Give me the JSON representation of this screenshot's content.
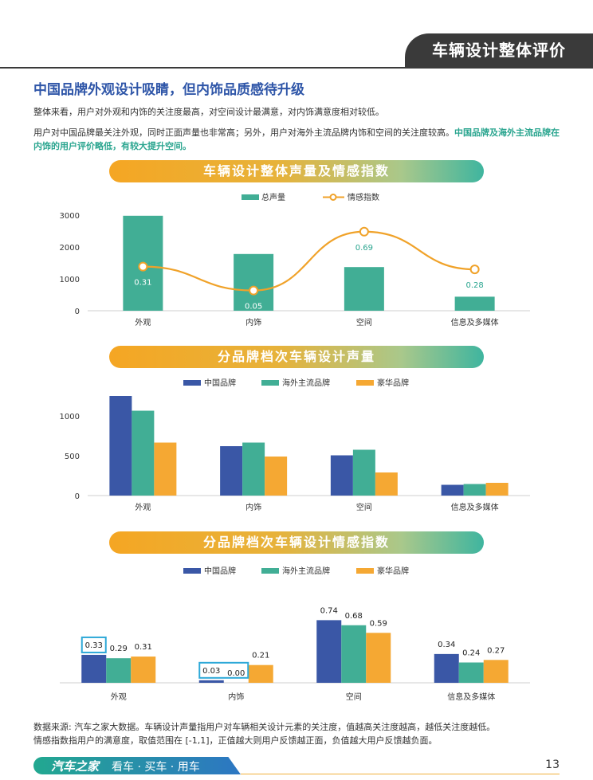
{
  "header": {
    "banner": "车辆设计整体评价"
  },
  "section": {
    "title": "中国品牌外观设计吸睛，但内饰品质感待升级",
    "para1": "整体来看，用户对外观和内饰的关注度最高，对空间设计最满意，对内饰满意度相对较低。",
    "para2_plain": "用户对中国品牌最关注外观，同时正面声量也非常高；另外，用户对海外主流品牌内饰和空间的关注度较高。",
    "para2_highlight": "中国品牌及海外主流品牌在内饰的用户评价略低，有较大提升空间。"
  },
  "colors": {
    "teal": "#41ae95",
    "orange": "#f5a833",
    "navy": "#3a57a6",
    "line": "#f0a229",
    "highlight_box": "#2ea9d8",
    "label_teal": "#2aa58f"
  },
  "chart_data": [
    {
      "type": "bar",
      "title": "车辆设计整体声量及情感指数",
      "categories": [
        "外观",
        "内饰",
        "空间",
        "信息及多媒体"
      ],
      "yticks": [
        "0",
        "1000",
        "2000",
        "3000"
      ],
      "ylim": [
        0,
        3000
      ],
      "legend_position": "top",
      "series": [
        {
          "name": "总声量",
          "kind": "bar",
          "values": [
            2980,
            1780,
            1370,
            440
          ]
        },
        {
          "name": "情感指数",
          "kind": "line",
          "values": [
            0.31,
            0.05,
            0.69,
            0.28
          ],
          "labels": [
            "0.31",
            "0.05",
            "0.69",
            "0.28"
          ]
        }
      ]
    },
    {
      "type": "bar",
      "title": "分品牌档次车辆设计声量",
      "categories": [
        "外观",
        "内饰",
        "空间",
        "信息及多媒体"
      ],
      "yticks": [
        "0",
        "500",
        "1000"
      ],
      "ylim": [
        0,
        1250
      ],
      "legend_position": "top",
      "series": [
        {
          "name": "中国品牌",
          "values": [
            1250,
            620,
            505,
            135
          ]
        },
        {
          "name": "海外主流品牌",
          "values": [
            1065,
            665,
            575,
            145
          ]
        },
        {
          "name": "豪华品牌",
          "values": [
            665,
            490,
            290,
            160
          ]
        }
      ]
    },
    {
      "type": "bar",
      "title": "分品牌档次车辆设计情感指数",
      "categories": [
        "外观",
        "内饰",
        "空间",
        "信息及多媒体"
      ],
      "ylim": [
        0,
        0.8
      ],
      "legend_position": "top",
      "series": [
        {
          "name": "中国品牌",
          "values": [
            0.33,
            0.03,
            0.74,
            0.34
          ],
          "labels": [
            "0.33",
            "0.03",
            "0.74",
            "0.34"
          ]
        },
        {
          "name": "海外主流品牌",
          "values": [
            0.29,
            0.0,
            0.68,
            0.24
          ],
          "labels": [
            "0.29",
            "0.00",
            "0.68",
            "0.24"
          ]
        },
        {
          "name": "豪华品牌",
          "values": [
            0.31,
            0.21,
            0.59,
            0.27
          ],
          "labels": [
            "0.31",
            "0.21",
            "0.59",
            "0.27"
          ]
        }
      ],
      "highlighted_labels": [
        {
          "category": "外观",
          "series": [
            "中国品牌"
          ]
        },
        {
          "category": "内饰",
          "series": [
            "中国品牌",
            "海外主流品牌"
          ]
        }
      ]
    }
  ],
  "source": {
    "line1": "数据来源: 汽车之家大数据。车辆设计声量指用户对车辆相关设计元素的关注度，值越高关注度越高，越低关注度越低。",
    "line2": "情感指数指用户的满意度，取值范围在 [-1,1]，正值越大则用户反馈越正面，负值越大用户反馈越负面。"
  },
  "footer": {
    "brand": "汽车之家",
    "slogan": "看车 · 买车 · 用车",
    "page": "13"
  }
}
